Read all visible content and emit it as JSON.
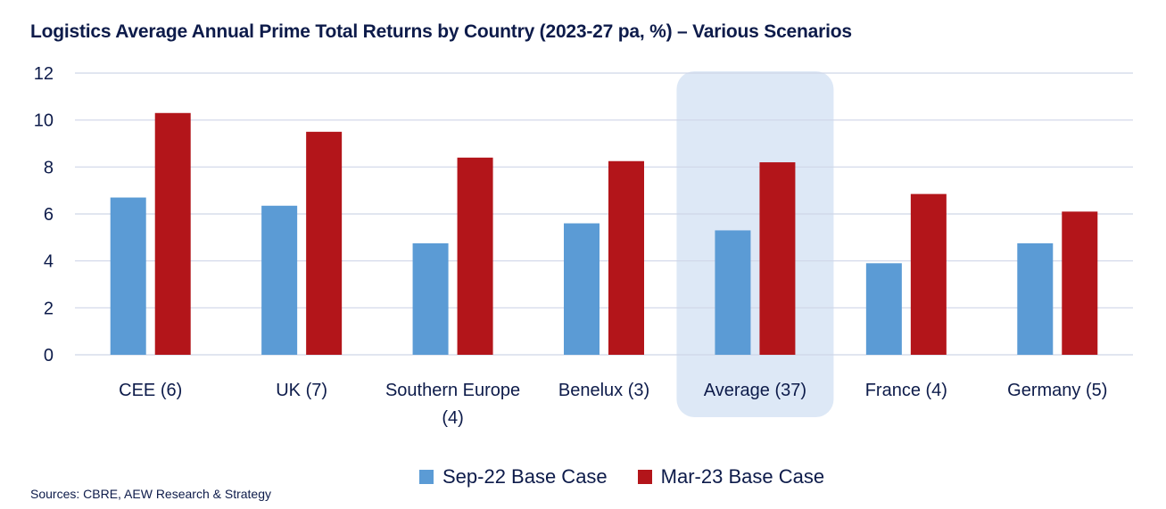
{
  "title": "Logistics Average Annual Prime Total Returns by Country (2023-27 pa, %) – Various Scenarios",
  "source": "Sources: CBRE, AEW Research & Strategy",
  "colors": {
    "series1": "#5b9bd5",
    "series2": "#b3151a",
    "highlight": "#dde8f6",
    "grid": "#cfd6e8",
    "text": "#0d1b4a"
  },
  "chart_data": {
    "type": "bar",
    "categories": [
      "CEE (6)",
      "UK (7)",
      "Southern Europe (4)",
      "Benelux (3)",
      "Average (37)",
      "France (4)",
      "Germany (5)"
    ],
    "category_lines": [
      [
        "CEE (6)"
      ],
      [
        "UK (7)"
      ],
      [
        "Southern Europe",
        "(4)"
      ],
      [
        "Benelux (3)"
      ],
      [
        "Average (37)"
      ],
      [
        "France (4)"
      ],
      [
        "Germany (5)"
      ]
    ],
    "series": [
      {
        "name": "Sep-22 Base Case",
        "values": [
          6.7,
          6.35,
          4.75,
          5.6,
          5.3,
          3.9,
          4.75
        ]
      },
      {
        "name": "Mar-23 Base Case",
        "values": [
          10.3,
          9.5,
          8.4,
          8.25,
          8.2,
          6.85,
          6.1
        ]
      }
    ],
    "ylim": [
      0,
      12
    ],
    "yticks": [
      0,
      2,
      4,
      6,
      8,
      10,
      12
    ],
    "highlighted_category": "Average (37)",
    "legend_position": "bottom",
    "grid": true
  }
}
